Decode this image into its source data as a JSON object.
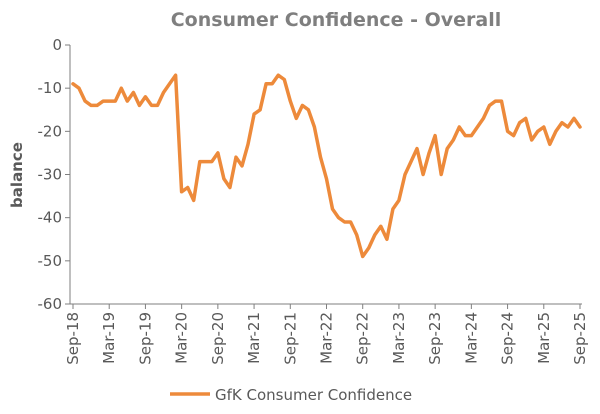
{
  "chart_data": {
    "type": "line",
    "title": "Consumer Confidence - Overall",
    "xlabel": "",
    "ylabel": "balance",
    "ylim": [
      -60,
      0
    ],
    "yticks": [
      0,
      -10,
      -20,
      -30,
      -40,
      -50,
      -60
    ],
    "grid": false,
    "legend_position": "bottom",
    "x_tick_labels": [
      "Sep-18",
      "Mar-19",
      "Sep-19",
      "Mar-20",
      "Sep-20",
      "Mar-21",
      "Sep-21",
      "Mar-22",
      "Sep-22",
      "Mar-23",
      "Sep-23",
      "Mar-24",
      "Sep-24",
      "Mar-25",
      "Sep-25"
    ],
    "series": [
      {
        "name": "GfK Consumer Confidence",
        "color": "#ed8a3b",
        "values": [
          -9,
          -10,
          -13,
          -14,
          -14,
          -13,
          -13,
          -13,
          -10,
          -13,
          -11,
          -14,
          -12,
          -14,
          -14,
          -11,
          -9,
          -7,
          -34,
          -33,
          -36,
          -27,
          -27,
          -27,
          -25,
          -31,
          -33,
          -26,
          -28,
          -23,
          -16,
          -15,
          -9,
          -9,
          -7,
          -8,
          -13,
          -17,
          -14,
          -15,
          -19,
          -26,
          -31,
          -38,
          -40,
          -41,
          -41,
          -44,
          -49,
          -47,
          -44,
          -42,
          -45,
          -38,
          -36,
          -30,
          -27,
          -24,
          -30,
          -25,
          -21,
          -30,
          -24,
          -22,
          -19,
          -21,
          -21,
          -19,
          -17,
          -14,
          -13,
          -13,
          -20,
          -21,
          -18,
          -17,
          -22,
          -20,
          -19,
          -23,
          -20,
          -18,
          -19,
          -17,
          -19
        ]
      }
    ]
  }
}
